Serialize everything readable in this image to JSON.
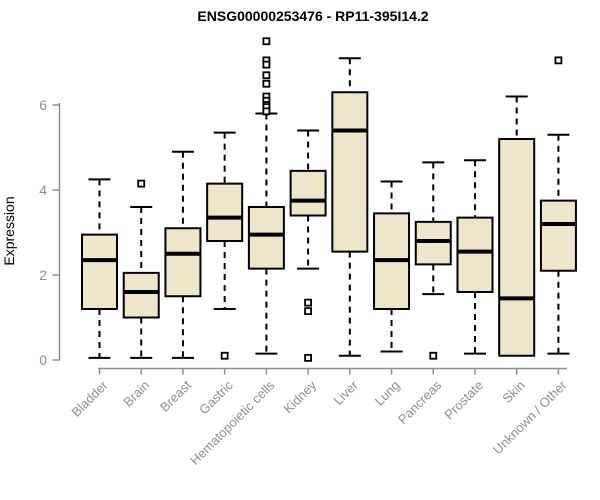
{
  "chart_data": {
    "type": "boxplot",
    "title": "ENSG00000253476 - RP11-395I14.2",
    "ylabel": "Expression",
    "xlabel": "",
    "yticks": [
      0,
      2,
      4,
      6
    ],
    "ylim": [
      0,
      7.6
    ],
    "grid": false,
    "legend": "none",
    "categories": [
      "Bladder",
      "Brain",
      "Breast",
      "Gastric",
      "Hematopoietic cells",
      "Kidney",
      "Liver",
      "Lung",
      "Pancreas",
      "Prostate",
      "Skin",
      "Unknown / Other"
    ],
    "series": [
      {
        "name": "Bladder",
        "whisker_low": 0.05,
        "q1": 1.2,
        "median": 2.35,
        "q3": 2.95,
        "whisker_high": 4.25,
        "outliers": []
      },
      {
        "name": "Brain",
        "whisker_low": 0.05,
        "q1": 1.0,
        "median": 1.6,
        "q3": 2.05,
        "whisker_high": 3.6,
        "outliers": [
          4.15
        ]
      },
      {
        "name": "Breast",
        "whisker_low": 0.05,
        "q1": 1.5,
        "median": 2.5,
        "q3": 3.1,
        "whisker_high": 4.9,
        "outliers": []
      },
      {
        "name": "Gastric",
        "whisker_low": 1.2,
        "q1": 2.8,
        "median": 3.35,
        "q3": 4.15,
        "whisker_high": 5.35,
        "outliers": [
          0.1
        ]
      },
      {
        "name": "Hematopoietic cells",
        "whisker_low": 0.15,
        "q1": 2.15,
        "median": 2.95,
        "q3": 3.6,
        "whisker_high": 5.8,
        "outliers": [
          7.5,
          7.05,
          6.95,
          6.7,
          6.5,
          6.2,
          6.1,
          6.0,
          5.95,
          5.85
        ]
      },
      {
        "name": "Kidney",
        "whisker_low": 2.15,
        "q1": 3.4,
        "median": 3.75,
        "q3": 4.45,
        "whisker_high": 5.4,
        "outliers": [
          1.35,
          1.15,
          0.05
        ]
      },
      {
        "name": "Liver",
        "whisker_low": 0.1,
        "q1": 2.55,
        "median": 5.4,
        "q3": 6.3,
        "whisker_high": 7.1,
        "outliers": []
      },
      {
        "name": "Lung",
        "whisker_low": 0.2,
        "q1": 1.2,
        "median": 2.35,
        "q3": 3.45,
        "whisker_high": 4.2,
        "outliers": []
      },
      {
        "name": "Pancreas",
        "whisker_low": 1.55,
        "q1": 2.25,
        "median": 2.8,
        "q3": 3.25,
        "whisker_high": 4.65,
        "outliers": [
          0.1
        ]
      },
      {
        "name": "Prostate",
        "whisker_low": 0.15,
        "q1": 1.6,
        "median": 2.55,
        "q3": 3.35,
        "whisker_high": 4.7,
        "outliers": []
      },
      {
        "name": "Skin",
        "whisker_low": 0.1,
        "q1": 0.1,
        "median": 1.45,
        "q3": 5.2,
        "whisker_high": 6.2,
        "outliers": []
      },
      {
        "name": "Unknown / Other",
        "whisker_low": 0.15,
        "q1": 2.1,
        "median": 3.2,
        "q3": 3.75,
        "whisker_high": 5.3,
        "outliers": [
          7.05
        ]
      }
    ],
    "colors": {
      "box_fill": "#EDE6CB",
      "box_stroke": "#000000",
      "median": "#000000",
      "whisker": "#000000",
      "outlier_fill": "#FFFFFF",
      "outlier_stroke": "#000000",
      "axis": "#8F8F8F",
      "tick_label": "#8F8F8F",
      "title": "#000000",
      "background": "#FFFFFF"
    }
  }
}
